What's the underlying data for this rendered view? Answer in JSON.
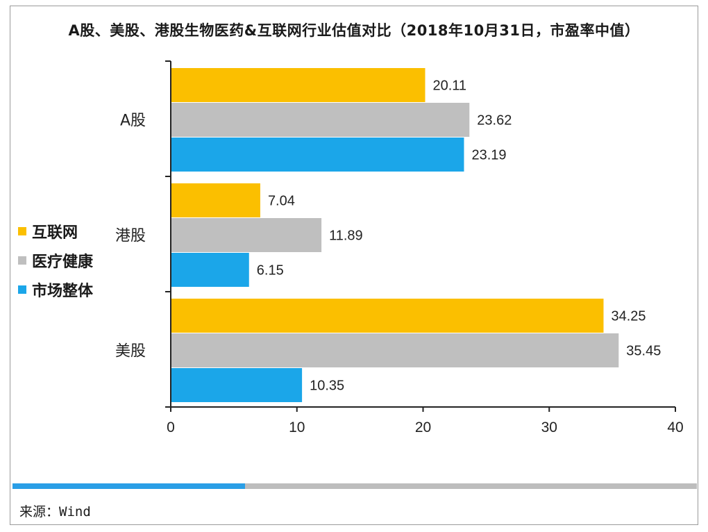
{
  "chart_data": {
    "type": "bar",
    "orientation": "horizontal",
    "title": "A股、美股、港股生物医药&互联网行业估值对比（2018年10月31日，市盈率中值）",
    "categories": [
      "A股",
      "港股",
      "美股"
    ],
    "series": [
      {
        "name": "互联网",
        "color": "#FBBF00",
        "values": [
          20.11,
          7.04,
          34.25
        ],
        "labels": [
          "20.11",
          "7.04",
          "34.25"
        ]
      },
      {
        "name": "医疗健康",
        "color": "#BFBFBF",
        "values": [
          23.62,
          11.89,
          35.45
        ],
        "labels": [
          "23.62",
          "11.89",
          "35.45"
        ]
      },
      {
        "name": "市场整体",
        "color": "#1BA6E9",
        "values": [
          23.19,
          6.15,
          10.35
        ],
        "labels": [
          "23.19",
          "6.15",
          "10.35"
        ]
      }
    ],
    "xlim": [
      0,
      40
    ],
    "xticks": [
      0,
      10,
      20,
      30,
      40
    ],
    "xtick_labels": [
      "0",
      "10",
      "20",
      "30",
      "40"
    ],
    "grid": false,
    "legend_position": "left"
  },
  "source": "来源：Wind",
  "scroll_progress": 0.34
}
